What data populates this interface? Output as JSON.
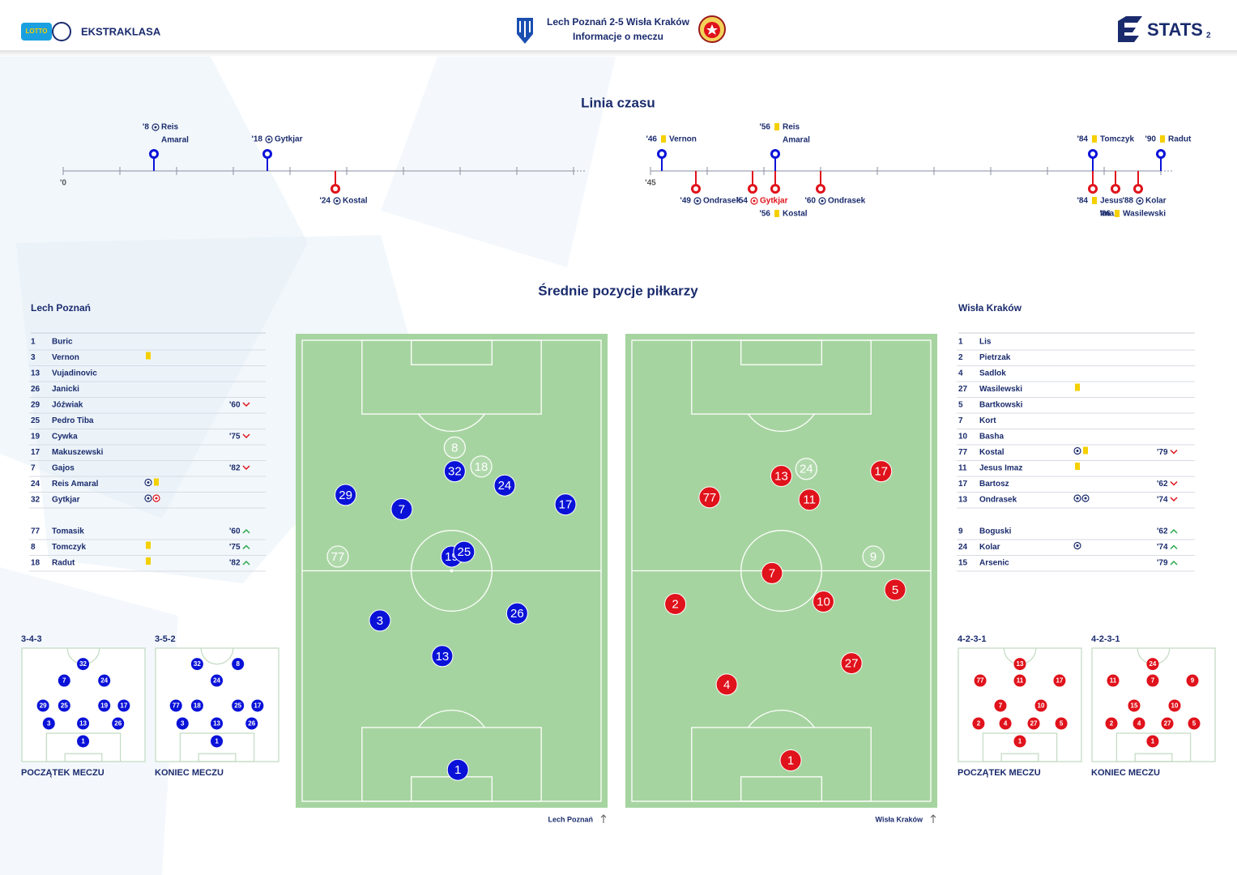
{
  "header": {
    "sponsor": "LOTTO",
    "league": "EKSTRAKLASA",
    "title": "Lech Poznań 2-5 Wisła Kraków",
    "subtitle": "Informacje o meczu",
    "brand": "STATS",
    "page": "2"
  },
  "timeline": {
    "title": "Linia czasu",
    "home_color": "#0a12d8",
    "away_color": "#e0121b",
    "halves": [
      {
        "xlim": [
          0,
          45
        ],
        "xticks": [
          {
            "value": 0,
            "label": "'0"
          },
          5,
          10,
          15,
          20,
          25,
          30,
          35,
          40,
          45
        ]
      },
      {
        "xlim": [
          45,
          90
        ],
        "xticks": [
          {
            "value": 45,
            "label": "'45"
          },
          50,
          55,
          60,
          65,
          70,
          75,
          80,
          85,
          90
        ]
      }
    ],
    "events": [
      {
        "team": "home",
        "type": "goal",
        "minute": {
          "value": 8,
          "label": "'8"
        },
        "names": [
          "Reis",
          "Amaral"
        ]
      },
      {
        "team": "home",
        "type": "goal",
        "minute": {
          "value": 18,
          "label": "'18"
        },
        "names": [
          "Gytkjar"
        ]
      },
      {
        "team": "away",
        "type": "goal",
        "minute": {
          "value": 24,
          "label": "'24"
        },
        "names": [
          "Kostal"
        ]
      },
      {
        "team": "home",
        "type": "yellow",
        "minute": {
          "value": 46,
          "label": "'46"
        },
        "names": [
          "Vernon"
        ]
      },
      {
        "team": "away",
        "type": "goal",
        "minute": {
          "value": 49,
          "label": "'49"
        },
        "names": [
          "Ondrasek"
        ]
      },
      {
        "team": "away",
        "type": "own-goal",
        "minute": {
          "value": 54,
          "label": "'54"
        },
        "names": [
          "Gytkjar"
        ]
      },
      {
        "team": "home",
        "type": "yellow",
        "minute": {
          "value": 56,
          "label": "'56"
        },
        "names": [
          "Reis",
          "Amaral"
        ]
      },
      {
        "team": "away",
        "type": "yellow",
        "minute": {
          "value": 56,
          "label": "'56"
        },
        "names": [
          "Kostal"
        ]
      },
      {
        "team": "away",
        "type": "goal",
        "minute": {
          "value": 60,
          "label": "'60"
        },
        "names": [
          "Ondrasek"
        ]
      },
      {
        "team": "home",
        "type": "yellow",
        "minute": {
          "value": 84,
          "label": "'84"
        },
        "names": [
          "Tomczyk"
        ]
      },
      {
        "team": "away",
        "type": "yellow",
        "minute": {
          "value": 84,
          "label": "'84"
        },
        "names": [
          "Jesus",
          "Imaz"
        ]
      },
      {
        "team": "away",
        "type": "yellow",
        "minute": {
          "value": 86,
          "label": "'86"
        },
        "names": [
          "Wasilewski"
        ]
      },
      {
        "team": "away",
        "type": "goal",
        "minute": {
          "value": 88,
          "label": "'88"
        },
        "names": [
          "Kolar"
        ]
      },
      {
        "team": "home",
        "type": "yellow",
        "minute": {
          "value": 90,
          "label": "'90"
        },
        "names": [
          "Radut"
        ]
      }
    ]
  },
  "positions": {
    "title": "Średnie pozycje piłkarzy",
    "teams": [
      {
        "name": "Lech Poznań",
        "pitch_label": "Lech Poznań",
        "color": "#0a12d8",
        "lineup": [
          {
            "number": "1",
            "name": "Buric",
            "icons": []
          },
          {
            "number": "3",
            "name": "Vernon",
            "icons": [
              "yellow"
            ]
          },
          {
            "number": "13",
            "name": "Vujadinovic",
            "icons": []
          },
          {
            "number": "26",
            "name": "Janicki",
            "icons": []
          },
          {
            "number": "29",
            "name": "Jóźwiak",
            "icons": [],
            "sub": {
              "minute": "'60",
              "dir": "out"
            }
          },
          {
            "number": "25",
            "name": "Pedro Tiba",
            "icons": []
          },
          {
            "number": "19",
            "name": "Cywka",
            "icons": [],
            "sub": {
              "minute": "'75",
              "dir": "out"
            }
          },
          {
            "number": "17",
            "name": "Makuszewski",
            "icons": []
          },
          {
            "number": "7",
            "name": "Gajos",
            "icons": [],
            "sub": {
              "minute": "'82",
              "dir": "out"
            }
          },
          {
            "number": "24",
            "name": "Reis Amaral",
            "icons": [
              "goal",
              "yellow"
            ]
          },
          {
            "number": "32",
            "name": "Gytkjar",
            "icons": [
              "goal",
              "own-goal"
            ]
          }
        ],
        "subs": [
          {
            "number": "77",
            "name": "Tomasik",
            "icons": [],
            "sub": {
              "minute": "'60",
              "dir": "in"
            }
          },
          {
            "number": "8",
            "name": "Tomczyk",
            "icons": [
              "yellow"
            ],
            "sub": {
              "minute": "'75",
              "dir": "in"
            }
          },
          {
            "number": "18",
            "name": "Radut",
            "icons": [
              "yellow"
            ],
            "sub": {
              "minute": "'82",
              "dir": "in"
            }
          }
        ],
        "average": [
          {
            "number": "29",
            "x": 16,
            "y": 34,
            "sub": false
          },
          {
            "number": "7",
            "x": 34,
            "y": 37,
            "sub": false
          },
          {
            "number": "32",
            "x": 51,
            "y": 29,
            "sub": false
          },
          {
            "number": "24",
            "x": 67,
            "y": 32,
            "sub": false
          },
          {
            "number": "17",
            "x": 86.5,
            "y": 36,
            "sub": false
          },
          {
            "number": "19",
            "x": 50,
            "y": 47,
            "sub": false
          },
          {
            "number": "25",
            "x": 54,
            "y": 46,
            "sub": false
          },
          {
            "number": "3",
            "x": 27,
            "y": 60.5,
            "sub": false
          },
          {
            "number": "26",
            "x": 71,
            "y": 59,
            "sub": false
          },
          {
            "number": "13",
            "x": 47,
            "y": 68,
            "sub": false
          },
          {
            "number": "1",
            "x": 52,
            "y": 92,
            "sub": false
          },
          {
            "number": "8",
            "x": 51,
            "y": 24,
            "sub": true
          },
          {
            "number": "18",
            "x": 59.5,
            "y": 28,
            "sub": true
          },
          {
            "number": "77",
            "x": 13.5,
            "y": 47,
            "sub": true
          }
        ],
        "formations": [
          {
            "name": "3-4-3",
            "caption": "POCZĄTEK MECZU",
            "players": [
              {
                "number": "32",
                "x": 49.7,
                "y": 14
              },
              {
                "number": "7",
                "x": 34.4,
                "y": 28.6
              },
              {
                "number": "24",
                "x": 66.9,
                "y": 28.6
              },
              {
                "number": "29",
                "x": 17.2,
                "y": 50.7
              },
              {
                "number": "25",
                "x": 34.4,
                "y": 50.7
              },
              {
                "number": "19",
                "x": 66.9,
                "y": 50.7
              },
              {
                "number": "17",
                "x": 82.8,
                "y": 50.7
              },
              {
                "number": "3",
                "x": 21.9,
                "y": 66.4
              },
              {
                "number": "13",
                "x": 49.7,
                "y": 66.4
              },
              {
                "number": "26",
                "x": 78.1,
                "y": 66.4
              },
              {
                "number": "1",
                "x": 49.7,
                "y": 82.1
              }
            ]
          },
          {
            "name": "3-5-2",
            "caption": "KONIEC MECZU",
            "players": [
              {
                "number": "32",
                "x": 33.8,
                "y": 14
              },
              {
                "number": "8",
                "x": 66.9,
                "y": 14
              },
              {
                "number": "24",
                "x": 49.7,
                "y": 28.6
              },
              {
                "number": "77",
                "x": 16.6,
                "y": 50.7
              },
              {
                "number": "18",
                "x": 33.8,
                "y": 50.7
              },
              {
                "number": "25",
                "x": 66.9,
                "y": 50.7
              },
              {
                "number": "17",
                "x": 82.8,
                "y": 50.7
              },
              {
                "number": "3",
                "x": 21.9,
                "y": 66.4
              },
              {
                "number": "13",
                "x": 49.7,
                "y": 66.4
              },
              {
                "number": "26",
                "x": 78.1,
                "y": 66.4
              },
              {
                "number": "1",
                "x": 49.7,
                "y": 82.1
              }
            ]
          }
        ]
      },
      {
        "name": "Wisła Kraków",
        "pitch_label": "Wisła Kraków",
        "color": "#e0121b",
        "lineup": [
          {
            "number": "1",
            "name": "Lis",
            "icons": []
          },
          {
            "number": "2",
            "name": "Pietrzak",
            "icons": []
          },
          {
            "number": "4",
            "name": "Sadlok",
            "icons": []
          },
          {
            "number": "27",
            "name": "Wasilewski",
            "icons": [
              "yellow"
            ]
          },
          {
            "number": "5",
            "name": "Bartkowski",
            "icons": []
          },
          {
            "number": "7",
            "name": "Kort",
            "icons": []
          },
          {
            "number": "10",
            "name": "Basha",
            "icons": []
          },
          {
            "number": "77",
            "name": "Kostal",
            "icons": [
              "goal",
              "yellow"
            ],
            "sub": {
              "minute": "'79",
              "dir": "out"
            }
          },
          {
            "number": "11",
            "name": "Jesus Imaz",
            "icons": [
              "yellow"
            ]
          },
          {
            "number": "17",
            "name": "Bartosz",
            "icons": [],
            "sub": {
              "minute": "'62",
              "dir": "out"
            }
          },
          {
            "number": "13",
            "name": "Ondrasek",
            "icons": [
              "goal",
              "goal"
            ],
            "sub": {
              "minute": "'74",
              "dir": "out"
            }
          }
        ],
        "subs": [
          {
            "number": "9",
            "name": "Boguski",
            "icons": [],
            "sub": {
              "minute": "'62",
              "dir": "in"
            }
          },
          {
            "number": "24",
            "name": "Kolar",
            "icons": [
              "goal"
            ],
            "sub": {
              "minute": "'74",
              "dir": "in"
            }
          },
          {
            "number": "15",
            "name": "Arsenic",
            "icons": [],
            "sub": {
              "minute": "'79",
              "dir": "in"
            }
          }
        ],
        "average": [
          {
            "number": "77",
            "x": 27,
            "y": 34.5,
            "sub": false
          },
          {
            "number": "13",
            "x": 50,
            "y": 30,
            "sub": false
          },
          {
            "number": "11",
            "x": 59,
            "y": 35,
            "sub": false
          },
          {
            "number": "17",
            "x": 82,
            "y": 29,
            "sub": false
          },
          {
            "number": "7",
            "x": 47,
            "y": 50.5,
            "sub": false
          },
          {
            "number": "10",
            "x": 63.5,
            "y": 56.5,
            "sub": false
          },
          {
            "number": "5",
            "x": 86.5,
            "y": 54,
            "sub": false
          },
          {
            "number": "2",
            "x": 16,
            "y": 57,
            "sub": false
          },
          {
            "number": "27",
            "x": 72.5,
            "y": 69.5,
            "sub": false
          },
          {
            "number": "4",
            "x": 32.5,
            "y": 74,
            "sub": false
          },
          {
            "number": "1",
            "x": 53,
            "y": 90,
            "sub": false
          },
          {
            "number": "24",
            "x": 58,
            "y": 28.5,
            "sub": true
          },
          {
            "number": "9",
            "x": 79.5,
            "y": 47,
            "sub": true
          }
        ],
        "formations": [
          {
            "name": "4-2-3-1",
            "caption": "POCZĄTEK MECZU",
            "players": [
              {
                "number": "13",
                "x": 50,
                "y": 14
              },
              {
                "number": "77",
                "x": 17.8,
                "y": 28.6
              },
              {
                "number": "11",
                "x": 50,
                "y": 28.6
              },
              {
                "number": "17",
                "x": 82.2,
                "y": 28.6
              },
              {
                "number": "7",
                "x": 34.2,
                "y": 50.7
              },
              {
                "number": "10",
                "x": 67.1,
                "y": 50.7
              },
              {
                "number": "2",
                "x": 16.4,
                "y": 66.4
              },
              {
                "number": "4",
                "x": 38.2,
                "y": 66.4
              },
              {
                "number": "27",
                "x": 61.2,
                "y": 66.4
              },
              {
                "number": "5",
                "x": 83.6,
                "y": 66.4
              },
              {
                "number": "1",
                "x": 50,
                "y": 82.1
              }
            ]
          },
          {
            "name": "4-2-3-1",
            "caption": "KONIEC MECZU",
            "players": [
              {
                "number": "24",
                "x": 49.3,
                "y": 14
              },
              {
                "number": "11",
                "x": 17.1,
                "y": 28.6
              },
              {
                "number": "7",
                "x": 49.3,
                "y": 28.6
              },
              {
                "number": "9",
                "x": 81.6,
                "y": 28.6
              },
              {
                "number": "15",
                "x": 34.2,
                "y": 50.7
              },
              {
                "number": "10",
                "x": 67.1,
                "y": 50.7
              },
              {
                "number": "2",
                "x": 15.8,
                "y": 66.4
              },
              {
                "number": "4",
                "x": 38.2,
                "y": 66.4
              },
              {
                "number": "27",
                "x": 61.2,
                "y": 66.4
              },
              {
                "number": "5",
                "x": 82.9,
                "y": 66.4
              },
              {
                "number": "1",
                "x": 49.3,
                "y": 82.1
              }
            ]
          }
        ]
      }
    ]
  }
}
